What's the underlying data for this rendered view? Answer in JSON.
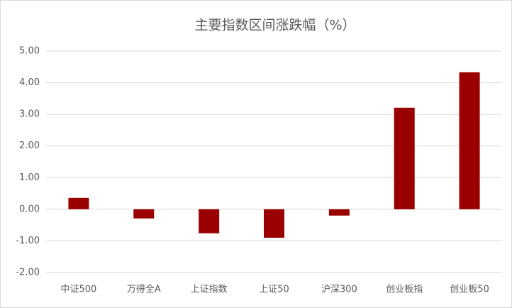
{
  "chart_data": {
    "type": "bar",
    "title": "主要指数区间涨跌幅（%）",
    "categories": [
      "中证500",
      "万得全A",
      "上证指数",
      "上证50",
      "沪深300",
      "创业板指",
      "创业板50"
    ],
    "values": [
      0.36,
      -0.29,
      -0.76,
      -0.9,
      -0.2,
      3.21,
      4.33
    ],
    "color": "#9a0000",
    "ylim": [
      -2,
      5
    ],
    "yticks": [
      {
        "value": -2,
        "label": "-2.00"
      },
      {
        "value": -1,
        "label": "-1.00"
      },
      {
        "value": 0,
        "label": "0.00"
      },
      {
        "value": 1,
        "label": "1.00"
      },
      {
        "value": 2,
        "label": "2.00"
      },
      {
        "value": 3,
        "label": "3.00"
      },
      {
        "value": 4,
        "label": "4.00"
      },
      {
        "value": 5,
        "label": "5.00"
      }
    ],
    "grid": true
  }
}
